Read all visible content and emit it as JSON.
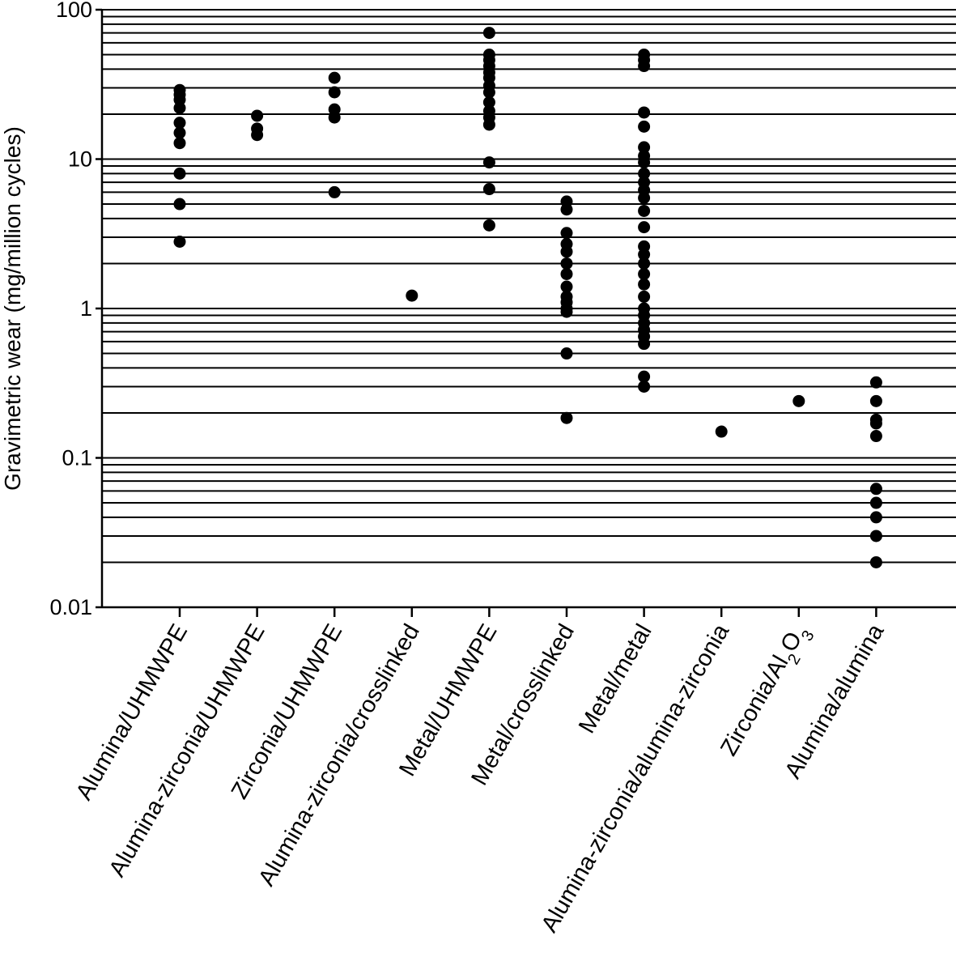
{
  "chart_data": {
    "type": "scatter",
    "title": "",
    "xlabel": "",
    "ylabel": "Gravimetric wear (mg/million cycles)",
    "yscale": "log",
    "ylim": [
      0.01,
      100
    ],
    "yticks": [
      {
        "value": 100,
        "label": "100"
      },
      {
        "value": 10,
        "label": "10"
      },
      {
        "value": 1,
        "label": "1"
      },
      {
        "value": 0.1,
        "label": "0.1"
      },
      {
        "value": 0.01,
        "label": "0.01"
      }
    ],
    "grid": "horizontal lines at 2–9 × each decade",
    "colors": {
      "points": "#000000",
      "grid": "#000000",
      "axis": "#000000"
    },
    "categories": [
      {
        "label": "Alumina/UHMWPE",
        "label_parts": [
          {
            "t": "Alumina/UHMWPE"
          }
        ],
        "values": [
          29,
          27,
          25,
          22,
          17.5,
          15,
          12.8,
          8,
          5,
          2.8
        ]
      },
      {
        "label": "Alumina-zirconia/UHMWPE",
        "label_parts": [
          {
            "t": "Alumina-zirconia/UHMWPE"
          }
        ],
        "values": [
          19.5,
          16,
          14.5
        ]
      },
      {
        "label": "Zirconia/UHMWPE",
        "label_parts": [
          {
            "t": "Zirconia/UHMWPE"
          }
        ],
        "values": [
          35,
          28,
          21.5,
          19,
          6
        ]
      },
      {
        "label": "Alumina-zirconia/crosslinked",
        "label_parts": [
          {
            "t": "Alumina-zirconia/crosslinked"
          }
        ],
        "values": [
          1.22
        ]
      },
      {
        "label": "Metal/UHMWPE",
        "label_parts": [
          {
            "t": "Metal/UHMWPE"
          }
        ],
        "values": [
          70,
          50,
          46,
          42,
          38,
          35,
          31,
          28,
          24,
          21,
          19,
          17,
          9.5,
          6.3,
          3.6
        ]
      },
      {
        "label": "Metal/crosslinked",
        "label_parts": [
          {
            "t": "Metal/crosslinked"
          }
        ],
        "values": [
          5.2,
          4.6,
          3.2,
          2.7,
          2.4,
          2.0,
          1.7,
          1.4,
          1.2,
          1.1,
          1.0,
          0.95,
          0.5,
          0.185
        ]
      },
      {
        "label": "Metal/metal",
        "label_parts": [
          {
            "t": "Metal/metal"
          }
        ],
        "values": [
          50,
          46,
          42,
          20.5,
          16.5,
          12,
          10.5,
          9.5,
          8,
          7,
          6.2,
          5.5,
          4.5,
          3.5,
          2.6,
          2.3,
          2.0,
          1.7,
          1.45,
          1.2,
          1.0,
          0.9,
          0.8,
          0.72,
          0.65,
          0.58,
          0.35,
          0.3
        ]
      },
      {
        "label": "Alumina-zirconia/alumina-zirconia",
        "label_parts": [
          {
            "t": "Alumina-zirconia/alumina-zirconia"
          }
        ],
        "values": [
          0.15
        ]
      },
      {
        "label": "Zirconia/Al2O3",
        "label_parts": [
          {
            "t": "Zirconia/Al"
          },
          {
            "t": "2",
            "sub": true
          },
          {
            "t": "O"
          },
          {
            "t": "3",
            "sub": true
          }
        ],
        "values": [
          0.24
        ]
      },
      {
        "label": "Alumina/alumina",
        "label_parts": [
          {
            "t": "Alumina/alumina"
          }
        ],
        "values": [
          0.32,
          0.24,
          0.18,
          0.17,
          0.14,
          0.062,
          0.05,
          0.04,
          0.03,
          0.02
        ]
      }
    ]
  }
}
